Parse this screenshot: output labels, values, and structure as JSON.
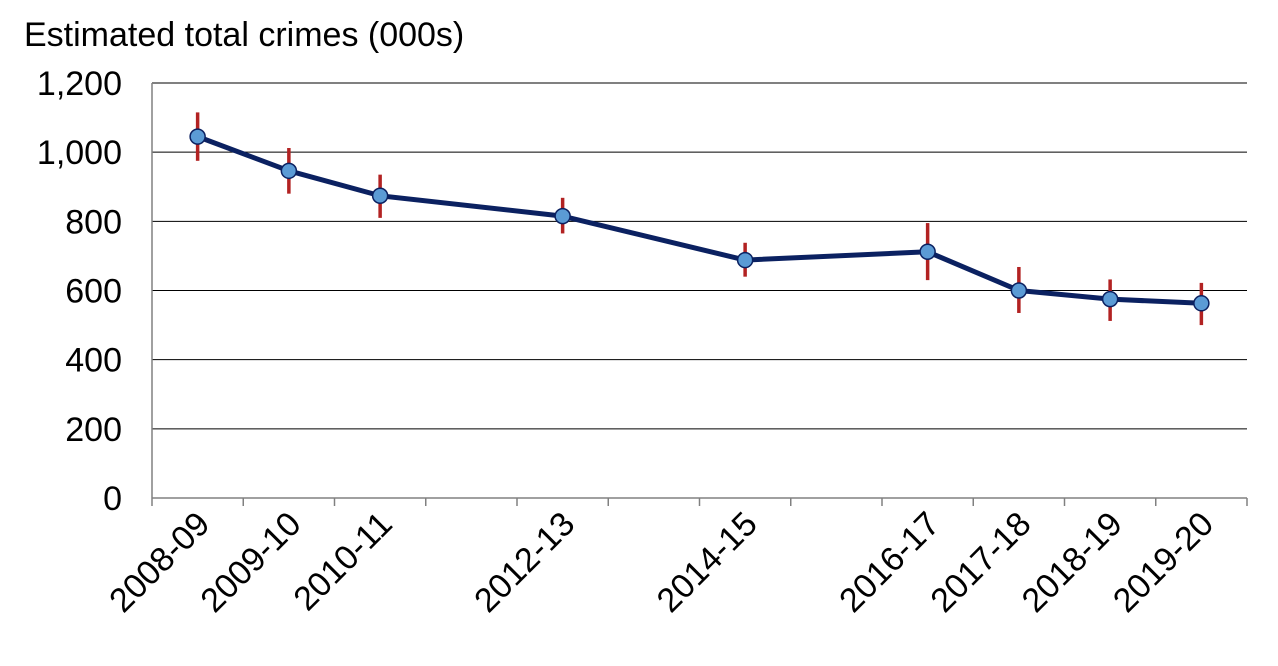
{
  "chart_data": {
    "type": "line",
    "ylabel": "Estimated total crimes (000s)",
    "ylim": [
      0,
      1200
    ],
    "ytick_step": 200,
    "yticks": [
      "0",
      "200",
      "400",
      "600",
      "800",
      "1,000",
      "1,200"
    ],
    "grid": true,
    "legend": "none",
    "x_scale": "year",
    "x": [
      2008,
      2009,
      2010,
      2012,
      2014,
      2016,
      2017,
      2018,
      2019
    ],
    "categories": [
      "2008-09",
      "2009-10",
      "2010-11",
      "2012-13",
      "2014-15",
      "2016-17",
      "2017-18",
      "2018-19",
      "2019-20"
    ],
    "series": [
      {
        "values": [
          1045,
          946,
          874,
          815,
          688,
          712,
          600,
          575,
          563
        ],
        "error_low": [
          975,
          880,
          810,
          765,
          640,
          630,
          535,
          512,
          500
        ],
        "error_high": [
          1115,
          1012,
          935,
          868,
          738,
          795,
          668,
          632,
          622
        ]
      }
    ],
    "colors": {
      "line": "#0b2161",
      "marker_fill": "#5b9bd5",
      "marker_stroke": "#0b2161",
      "error_bar": "#b22222",
      "gridline": "#000000",
      "axis": "#808080"
    }
  }
}
